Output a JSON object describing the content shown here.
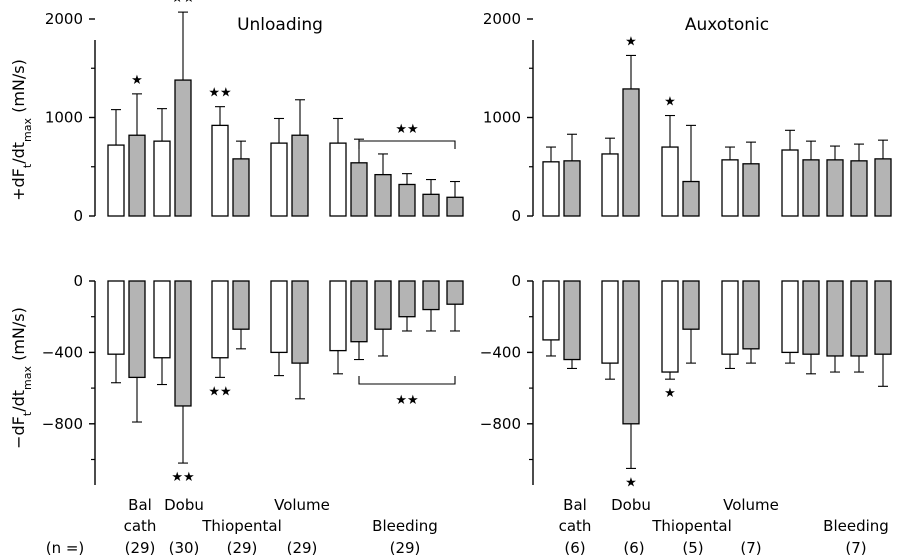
{
  "chart_data": [
    {
      "type": "bar",
      "title": "Unloading",
      "ylabel": "+dF_t/dt_max (mN/s)",
      "ylim": [
        0,
        2200
      ],
      "yticks": [
        0,
        1000,
        2000
      ],
      "series_colors": {
        "baseline": "#ffffff",
        "intervention": "#b4b4b4"
      },
      "bars": [
        {
          "value": 720,
          "error": 360,
          "fill": "baseline"
        },
        {
          "value": 820,
          "error": 420,
          "fill": "intervention",
          "sig": "★"
        },
        {
          "value": 760,
          "error": 330,
          "fill": "baseline"
        },
        {
          "value": 1380,
          "error": 690,
          "fill": "intervention",
          "sig": "★★"
        },
        {
          "value": 920,
          "error": 190,
          "fill": "baseline",
          "sig": "★★"
        },
        {
          "value": 580,
          "error": 180,
          "fill": "intervention"
        },
        {
          "value": 740,
          "error": 250,
          "fill": "baseline"
        },
        {
          "value": 820,
          "error": 360,
          "fill": "intervention"
        },
        {
          "value": 740,
          "error": 250,
          "fill": "baseline"
        },
        {
          "value": 540,
          "error": 240,
          "fill": "intervention"
        },
        {
          "value": 420,
          "error": 210,
          "fill": "intervention"
        },
        {
          "value": 320,
          "error": 110,
          "fill": "intervention"
        },
        {
          "value": 220,
          "error": 150,
          "fill": "intervention"
        },
        {
          "value": 190,
          "error": 160,
          "fill": "intervention"
        }
      ],
      "bracket": {
        "from": 9,
        "to": 13,
        "label": "★★"
      }
    },
    {
      "type": "bar",
      "title": "",
      "ylabel": "−dF_t/dt_max (mN/s)",
      "ylim": [
        -1150,
        0
      ],
      "yticks": [
        0,
        -400,
        -800
      ],
      "bars": [
        {
          "value": -410,
          "error": 160,
          "fill": "baseline"
        },
        {
          "value": -540,
          "error": 250,
          "fill": "intervention"
        },
        {
          "value": -430,
          "error": 150,
          "fill": "baseline"
        },
        {
          "value": -700,
          "error": 320,
          "fill": "intervention",
          "sig": "★★"
        },
        {
          "value": -430,
          "error": 110,
          "fill": "baseline",
          "sig": "★★"
        },
        {
          "value": -270,
          "error": 110,
          "fill": "intervention"
        },
        {
          "value": -400,
          "error": 130,
          "fill": "baseline"
        },
        {
          "value": -460,
          "error": 200,
          "fill": "intervention"
        },
        {
          "value": -390,
          "error": 130,
          "fill": "baseline"
        },
        {
          "value": -340,
          "error": 100,
          "fill": "intervention"
        },
        {
          "value": -270,
          "error": 150,
          "fill": "intervention"
        },
        {
          "value": -200,
          "error": 80,
          "fill": "intervention"
        },
        {
          "value": -160,
          "error": 120,
          "fill": "intervention"
        },
        {
          "value": -130,
          "error": 150,
          "fill": "intervention"
        }
      ],
      "bracket": {
        "from": 9,
        "to": 13,
        "label": "★★"
      }
    },
    {
      "type": "bar",
      "title": "Auxotonic",
      "ylabel": "",
      "ylim": [
        0,
        2200
      ],
      "yticks": [
        0,
        1000,
        2000
      ],
      "bars": [
        {
          "value": 550,
          "error": 150,
          "fill": "baseline"
        },
        {
          "value": 560,
          "error": 270,
          "fill": "intervention"
        },
        {
          "value": 630,
          "error": 160,
          "fill": "baseline"
        },
        {
          "value": 1290,
          "error": 340,
          "fill": "intervention",
          "sig": "★"
        },
        {
          "value": 700,
          "error": 320,
          "fill": "baseline",
          "sig": "★"
        },
        {
          "value": 350,
          "error": 570,
          "fill": "intervention"
        },
        {
          "value": 570,
          "error": 130,
          "fill": "baseline"
        },
        {
          "value": 530,
          "error": 220,
          "fill": "intervention"
        },
        {
          "value": 670,
          "error": 200,
          "fill": "baseline"
        },
        {
          "value": 570,
          "error": 190,
          "fill": "intervention"
        },
        {
          "value": 570,
          "error": 140,
          "fill": "intervention"
        },
        {
          "value": 560,
          "error": 170,
          "fill": "intervention"
        },
        {
          "value": 580,
          "error": 190,
          "fill": "intervention"
        },
        {
          "value": 590,
          "error": 300,
          "fill": "intervention"
        }
      ]
    },
    {
      "type": "bar",
      "title": "",
      "ylabel": "",
      "ylim": [
        -1150,
        0
      ],
      "yticks": [
        0,
        -400,
        -800
      ],
      "bars": [
        {
          "value": -330,
          "error": 90,
          "fill": "baseline"
        },
        {
          "value": -440,
          "error": 50,
          "fill": "intervention"
        },
        {
          "value": -460,
          "error": 90,
          "fill": "baseline"
        },
        {
          "value": -800,
          "error": 250,
          "fill": "intervention",
          "sig": "★"
        },
        {
          "value": -510,
          "error": 40,
          "fill": "baseline",
          "sig": "★"
        },
        {
          "value": -270,
          "error": 190,
          "fill": "intervention"
        },
        {
          "value": -410,
          "error": 80,
          "fill": "baseline"
        },
        {
          "value": -380,
          "error": 80,
          "fill": "intervention"
        },
        {
          "value": -400,
          "error": 60,
          "fill": "baseline"
        },
        {
          "value": -410,
          "error": 110,
          "fill": "intervention"
        },
        {
          "value": -420,
          "error": 90,
          "fill": "intervention"
        },
        {
          "value": -420,
          "error": 90,
          "fill": "intervention"
        },
        {
          "value": -410,
          "error": 180,
          "fill": "intervention"
        },
        {
          "value": -410,
          "error": 200,
          "fill": "intervention"
        }
      ]
    }
  ],
  "group_labels": {
    "bal": "Bal",
    "cath": "cath",
    "dobu": "Dobu",
    "thiopental": "Thiopental",
    "volume": "Volume",
    "bleeding": "Bleeding"
  },
  "n_label": "(n =)",
  "n_left": {
    "bal": "(29)",
    "dobu": "(30)",
    "thiopental": "(29)",
    "volume": "(29)",
    "bleeding": "(29)"
  },
  "n_right": {
    "bal": "(6)",
    "dobu": "(6)",
    "thiopental": "(5)",
    "volume": "(7)",
    "bleeding": "(7)"
  }
}
